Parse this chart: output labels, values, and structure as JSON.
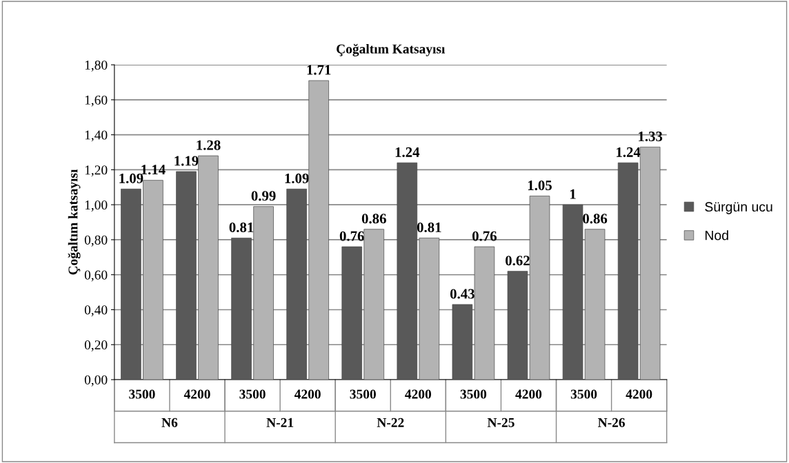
{
  "chart_data": {
    "type": "bar",
    "title": "Çoğaltım Katsayısı",
    "ylabel": "Çoğaltım katsayısı",
    "categories": [
      "3500",
      "4200",
      "3500",
      "4200",
      "3500",
      "4200",
      "3500",
      "4200",
      "3500",
      "4200"
    ],
    "annotations": [
      "N6",
      "N-21",
      "N-22",
      "N-25",
      "N-26"
    ],
    "series": [
      {
        "name": "Sürgün ucu",
        "color": "#595959",
        "values": [
          1.09,
          1.19,
          0.81,
          1.09,
          0.76,
          1.24,
          0.43,
          0.62,
          1,
          1.24
        ]
      },
      {
        "name": "Nod",
        "color": "#b3b3b3",
        "values": [
          1.14,
          1.28,
          0.99,
          1.71,
          0.86,
          0.81,
          0.76,
          1.05,
          0.86,
          1.33
        ]
      }
    ],
    "ylim": [
      0,
      1.8
    ],
    "yticks": [
      {
        "value": 0,
        "label": "0,00"
      },
      {
        "value": 0.2,
        "label": "0,20"
      },
      {
        "value": 0.4,
        "label": "0,40"
      },
      {
        "value": 0.6,
        "label": "0,60"
      },
      {
        "value": 0.8,
        "label": "0,80"
      },
      {
        "value": 1.0,
        "label": "1,00"
      },
      {
        "value": 1.2,
        "label": "1,20"
      },
      {
        "value": 1.4,
        "label": "1,40"
      },
      {
        "value": 1.6,
        "label": "1,60"
      },
      {
        "value": 1.8,
        "label": "1,80"
      }
    ],
    "grid": "y",
    "legend": "right",
    "data_labels": true
  }
}
